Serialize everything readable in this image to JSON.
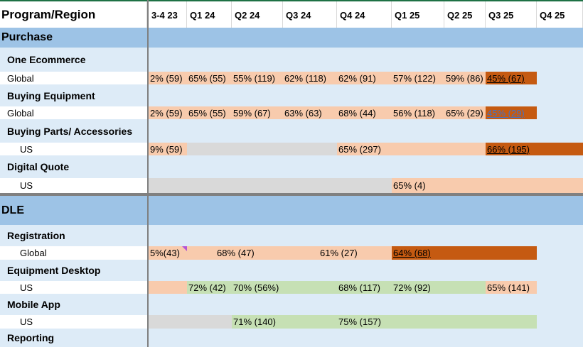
{
  "header": {
    "title": "Program/Region",
    "quarters": [
      "3-4 23",
      "Q1 24",
      "Q2 24",
      "Q3 24",
      "Q4 24",
      "Q1 25",
      "Q2 25",
      "Q3 25",
      "Q4 25"
    ]
  },
  "sections": {
    "purchase": "Purchase",
    "dle": "DLE"
  },
  "programs": {
    "one_ecommerce": "One Ecommerce",
    "buying_equipment": "Buying Equipment",
    "buying_parts": "Buying Parts/ Accessories",
    "digital_quote": "Digital Quote",
    "registration": "Registration",
    "equipment_desktop": "Equipment Desktop",
    "mobile_app": "Mobile App",
    "reporting": "Reporting"
  },
  "regions": {
    "global": "Global",
    "us": "US"
  },
  "values": {
    "one_ecommerce_global": [
      "2% (59)",
      "65% (55)",
      "55% (119)",
      "62% (118)",
      "62% (91)",
      "57% (122)",
      "59% (86)",
      "45% (67)"
    ],
    "buying_equipment_global": [
      "2% (59)",
      "65% (55)",
      "59% (67)",
      "63% (63)",
      "68% (44)",
      "56% (118)",
      "65% (29)",
      "45% (29)"
    ],
    "buying_parts_us": [
      "9% (59)",
      "65% (297)",
      "66% (195)"
    ],
    "digital_quote_us": [
      "65% (4)"
    ],
    "registration_global": [
      "5%(43)",
      "68% (47)",
      "61% (27)",
      "64% (68)"
    ],
    "equipment_desktop_us": [
      "72% (42)",
      "70% (56%)",
      "68% (117)",
      "72% (92)",
      "65% (141)"
    ],
    "mobile_app_us": [
      "71% (140)",
      "75% (157)"
    ]
  },
  "colors": {
    "header_rule": "#1e7145",
    "section": "#9dc3e6",
    "program_row": "#ddebf7",
    "peach": "#f8cbad",
    "orange": "#c55a11",
    "green": "#c6e0b4",
    "gray": "#d9d9d9"
  }
}
